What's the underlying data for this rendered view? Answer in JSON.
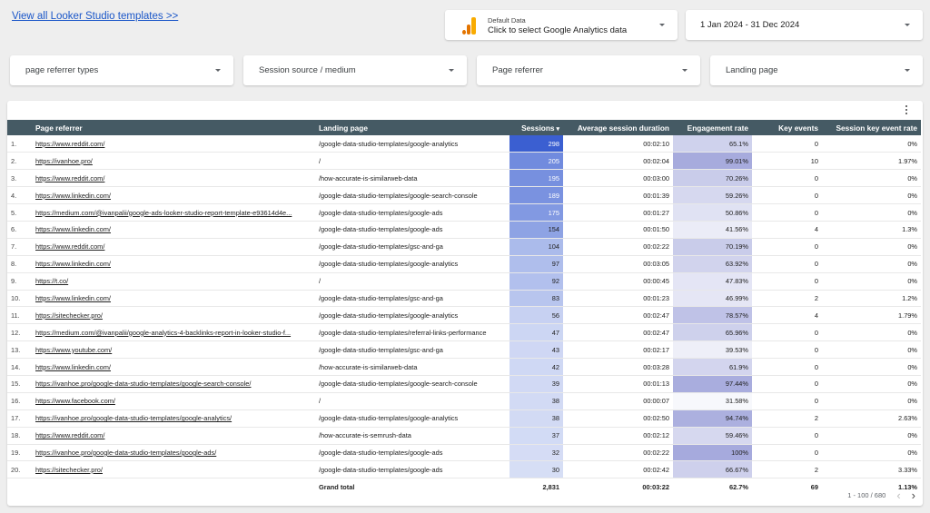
{
  "header": {
    "templates_link": "View all Looker Studio templates >>",
    "data_source": {
      "small": "Default Data",
      "main": "Click to select Google Analytics data"
    },
    "date_range": "1 Jan 2024 - 31 Dec 2024"
  },
  "filters": [
    "page referrer types",
    "Session source / medium",
    "Page referrer",
    "Landing page"
  ],
  "table": {
    "columns": [
      "Page referrer",
      "Landing page",
      "Sessions",
      "Average session duration",
      "Engagement rate",
      "Key events",
      "Session key event rate"
    ],
    "rows": [
      [
        "1.",
        "https://www.reddit.com/",
        "/google-data-studio-templates/google-analytics",
        "298",
        "00:02:10",
        "65.1%",
        "0",
        "0%"
      ],
      [
        "2.",
        "https://ivanhoe.pro/",
        "/",
        "205",
        "00:02:04",
        "99.01%",
        "10",
        "1.97%"
      ],
      [
        "3.",
        "https://www.reddit.com/",
        "/how-accurate-is-similarweb-data",
        "195",
        "00:03:00",
        "70.26%",
        "0",
        "0%"
      ],
      [
        "4.",
        "https://www.linkedin.com/",
        "/google-data-studio-templates/google-search-console",
        "189",
        "00:01:39",
        "59.26%",
        "0",
        "0%"
      ],
      [
        "5.",
        "https://medium.com/@ivanpalii/google-ads-looker-studio-report-template-e93614d4e...",
        "/google-data-studio-templates/google-ads",
        "175",
        "00:01:27",
        "50.86%",
        "0",
        "0%"
      ],
      [
        "6.",
        "https://www.linkedin.com/",
        "/google-data-studio-templates/google-ads",
        "154",
        "00:01:50",
        "41.56%",
        "4",
        "1.3%"
      ],
      [
        "7.",
        "https://www.reddit.com/",
        "/google-data-studio-templates/gsc-and-ga",
        "104",
        "00:02:22",
        "70.19%",
        "0",
        "0%"
      ],
      [
        "8.",
        "https://www.linkedin.com/",
        "/google-data-studio-templates/google-analytics",
        "97",
        "00:03:05",
        "63.92%",
        "0",
        "0%"
      ],
      [
        "9.",
        "https://t.co/",
        "/",
        "92",
        "00:00:45",
        "47.83%",
        "0",
        "0%"
      ],
      [
        "10.",
        "https://www.linkedin.com/",
        "/google-data-studio-templates/gsc-and-ga",
        "83",
        "00:01:23",
        "46.99%",
        "2",
        "1.2%"
      ],
      [
        "11.",
        "https://sitechecker.pro/",
        "/google-data-studio-templates/google-analytics",
        "56",
        "00:02:47",
        "78.57%",
        "4",
        "1.79%"
      ],
      [
        "12.",
        "https://medium.com/@ivanpalii/google-analytics-4-backlinks-report-in-looker-studio-f...",
        "/google-data-studio-templates/referral-links-performance",
        "47",
        "00:02:47",
        "65.96%",
        "0",
        "0%"
      ],
      [
        "13.",
        "https://www.youtube.com/",
        "/google-data-studio-templates/gsc-and-ga",
        "43",
        "00:02:17",
        "39.53%",
        "0",
        "0%"
      ],
      [
        "14.",
        "https://www.linkedin.com/",
        "/how-accurate-is-similarweb-data",
        "42",
        "00:03:28",
        "61.9%",
        "0",
        "0%"
      ],
      [
        "15.",
        "https://ivanhoe.pro/google-data-studio-templates/google-search-console/",
        "/google-data-studio-templates/google-search-console",
        "39",
        "00:01:13",
        "97.44%",
        "0",
        "0%"
      ],
      [
        "16.",
        "https://www.facebook.com/",
        "/",
        "38",
        "00:00:07",
        "31.58%",
        "0",
        "0%"
      ],
      [
        "17.",
        "https://ivanhoe.pro/google-data-studio-templates/google-analytics/",
        "/google-data-studio-templates/google-analytics",
        "38",
        "00:02:50",
        "94.74%",
        "2",
        "2.63%"
      ],
      [
        "18.",
        "https://www.reddit.com/",
        "/how-accurate-is-semrush-data",
        "37",
        "00:02:12",
        "59.46%",
        "0",
        "0%"
      ],
      [
        "19.",
        "https://ivanhoe.pro/google-data-studio-templates/google-ads/",
        "/google-data-studio-templates/google-ads",
        "32",
        "00:02:22",
        "100%",
        "0",
        "0%"
      ],
      [
        "20.",
        "https://sitechecker.pro/",
        "/google-data-studio-templates/google-ads",
        "30",
        "00:02:42",
        "66.67%",
        "2",
        "3.33%"
      ]
    ],
    "totals": [
      "Grand total",
      "2,831",
      "00:03:22",
      "62.7%",
      "69",
      "1.13%"
    ],
    "pagination": "1 - 100 / 680"
  },
  "colors": {
    "sessions_heat": "#3b5fd1",
    "engagement_heat": "#a9acdc",
    "header_bg": "#455a64",
    "link": "#1a56c8"
  }
}
